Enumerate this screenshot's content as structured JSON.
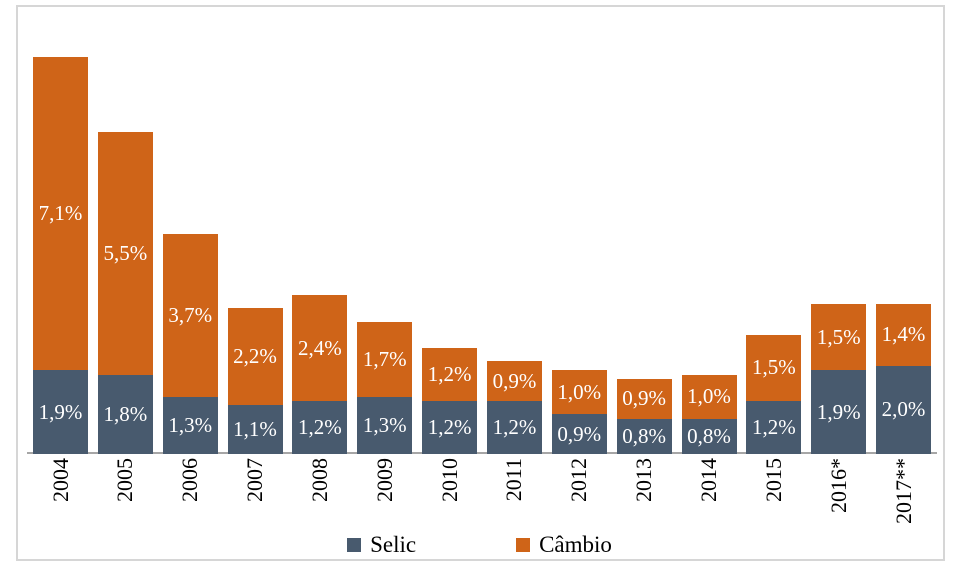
{
  "chart_data": {
    "type": "bar",
    "stacked": true,
    "title": "",
    "xlabel": "",
    "ylabel": "",
    "grid": false,
    "legend_position": "bottom",
    "ylim": [
      0,
      9.2
    ],
    "background_color": "#ffffff",
    "frame_color": "#d6d6d6",
    "axis_color": "#a6a6a6",
    "value_label_color": "#ffffff",
    "decimal_separator": ",",
    "categories": [
      "2004",
      "2005",
      "2006",
      "2007",
      "2008",
      "2009",
      "2010",
      "2011",
      "2012",
      "2013",
      "2014",
      "2015",
      "2016*",
      "2017**"
    ],
    "series": [
      {
        "name": "Selic",
        "color": "#485a6e",
        "values": [
          1.9,
          1.8,
          1.3,
          1.1,
          1.2,
          1.3,
          1.2,
          1.2,
          0.9,
          0.8,
          0.8,
          1.2,
          1.9,
          2.0
        ],
        "labels": [
          "1,9%",
          "1,8%",
          "1,3%",
          "1,1%",
          "1,2%",
          "1,3%",
          "1,2%",
          "1,2%",
          "0,9%",
          "0,8%",
          "0,8%",
          "1,2%",
          "1,9%",
          "2,0%"
        ]
      },
      {
        "name": "Câmbio",
        "color": "#cf6418",
        "values": [
          7.1,
          5.5,
          3.7,
          2.2,
          2.4,
          1.7,
          1.2,
          0.9,
          1.0,
          0.9,
          1.0,
          1.5,
          1.5,
          1.4
        ],
        "labels": [
          "7,1%",
          "5,5%",
          "3,7%",
          "2,2%",
          "2,4%",
          "1,7%",
          "1,2%",
          "0,9%",
          "1,0%",
          "0,9%",
          "1,0%",
          "1,5%",
          "1,5%",
          "1,4%"
        ]
      }
    ]
  }
}
